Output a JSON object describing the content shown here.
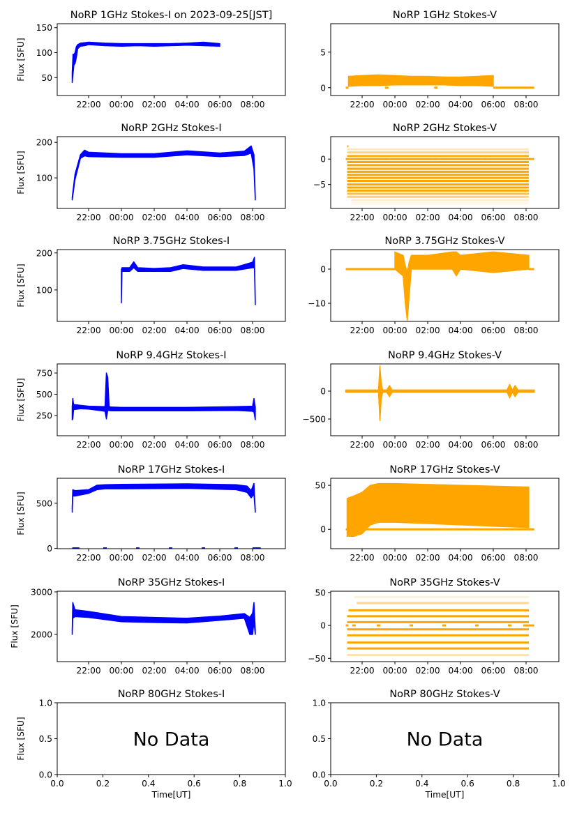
{
  "chart_data": [
    {
      "type": "scatter",
      "title": "NoRP 1GHz Stokes-I on 2023-09-25[JST]",
      "ylabel": "Flux [SFU]",
      "xlabel": "",
      "color": "#0000ff",
      "xlim": [
        "20:05",
        "10:00"
      ],
      "xticks": [
        "22:00",
        "00:00",
        "02:00",
        "04:00",
        "06:00",
        "08:00"
      ],
      "ylim": [
        14,
        158
      ],
      "yticks": [
        "50",
        "100",
        "150"
      ],
      "band": {
        "x": [
          "21:00",
          "21:03",
          "21:06",
          "21:10",
          "21:15",
          "21:20",
          "21:30",
          "21:45",
          "22:00",
          "23:00",
          "00:00",
          "01:00",
          "02:00",
          "03:00",
          "04:00",
          "05:00",
          "06:00"
        ],
        "hi": [
          60,
          97,
          96,
          100,
          112,
          116,
          119,
          120,
          121,
          119,
          118,
          118,
          118,
          118,
          119,
          121,
          118
        ],
        "lo": [
          40,
          58,
          75,
          78,
          90,
          108,
          113,
          114,
          116,
          114,
          113,
          114,
          113,
          114,
          115,
          114,
          113
        ]
      },
      "levels": [],
      "zero_markers": []
    },
    {
      "type": "scatter",
      "title": "NoRP 1GHz Stokes-V",
      "ylabel": "",
      "xlabel": "",
      "color": "#ffa500",
      "xlim": [
        "20:05",
        "10:00"
      ],
      "xticks": [
        "22:00",
        "00:00",
        "02:00",
        "04:00",
        "06:00",
        "08:00"
      ],
      "ylim": [
        -1.1,
        9.0
      ],
      "yticks": [
        "0",
        "5"
      ],
      "band": {
        "x": [
          "21:10",
          "22:00",
          "23:00",
          "00:00",
          "01:00",
          "02:00",
          "03:00",
          "04:00",
          "05:00",
          "06:00"
        ],
        "hi": [
          1.6,
          1.7,
          1.8,
          1.7,
          1.6,
          1.6,
          1.5,
          1.5,
          1.6,
          1.7
        ],
        "lo": [
          0.2,
          0.3,
          0.3,
          0.4,
          0.4,
          0.4,
          0.4,
          0.3,
          0.3,
          0.2
        ]
      },
      "levels": [
        {
          "y": 0,
          "x0": "21:00",
          "x1": "21:10",
          "alpha": 1
        },
        {
          "y": 0,
          "x0": "06:00",
          "x1": "08:30",
          "alpha": 1
        }
      ],
      "zero_markers": [
        "23:30",
        "02:30"
      ]
    },
    {
      "type": "scatter",
      "title": "NoRP 2GHz Stokes-I",
      "ylabel": "Flux [SFU]",
      "xlabel": "",
      "color": "#0000ff",
      "xlim": [
        "20:05",
        "10:00"
      ],
      "xticks": [
        "22:00",
        "00:00",
        "02:00",
        "04:00",
        "06:00",
        "08:00"
      ],
      "ylim": [
        14,
        216
      ],
      "yticks": [
        "100",
        "200"
      ],
      "band": {
        "x": [
          "21:00",
          "21:10",
          "21:30",
          "21:45",
          "22:00",
          "00:00",
          "02:00",
          "04:00",
          "06:00",
          "07:30",
          "07:55",
          "08:05",
          "08:10"
        ],
        "hi": [
          45,
          110,
          165,
          178,
          172,
          168,
          168,
          176,
          170,
          175,
          190,
          165,
          45
        ],
        "lo": [
          38,
          95,
          155,
          162,
          160,
          158,
          158,
          165,
          160,
          163,
          170,
          125,
          38
        ]
      },
      "levels": [],
      "zero_markers": []
    },
    {
      "type": "scatter",
      "title": "NoRP 2GHz Stokes-V",
      "ylabel": "",
      "xlabel": "",
      "color": "#ffa500",
      "xlim": [
        "20:05",
        "10:00"
      ],
      "xticks": [
        "22:00",
        "00:00",
        "02:00",
        "04:00",
        "06:00",
        "08:00"
      ],
      "ylim": [
        -9.7,
        4.4
      ],
      "yticks": [
        "0",
        "-5"
      ],
      "band": null,
      "levels": [
        {
          "y": 0,
          "x0": "21:00",
          "x1": "08:30",
          "alpha": 1
        },
        {
          "y": 2.5,
          "x0": "21:05",
          "x1": "21:10",
          "alpha": 0.9
        },
        {
          "y": 1.9,
          "x0": "21:05",
          "x1": "08:10",
          "alpha": 0.25
        },
        {
          "y": 1.3,
          "x0": "21:05",
          "x1": "08:10",
          "alpha": 0.5
        },
        {
          "y": 0.6,
          "x0": "21:05",
          "x1": "08:10",
          "alpha": 0.9
        },
        {
          "y": -0.6,
          "x0": "21:05",
          "x1": "08:10",
          "alpha": 1
        },
        {
          "y": -1.2,
          "x0": "21:05",
          "x1": "08:10",
          "alpha": 1
        },
        {
          "y": -1.9,
          "x0": "21:05",
          "x1": "08:10",
          "alpha": 1
        },
        {
          "y": -2.5,
          "x0": "21:05",
          "x1": "08:10",
          "alpha": 1
        },
        {
          "y": -3.1,
          "x0": "21:05",
          "x1": "08:10",
          "alpha": 1
        },
        {
          "y": -3.7,
          "x0": "21:05",
          "x1": "08:10",
          "alpha": 1
        },
        {
          "y": -4.3,
          "x0": "21:05",
          "x1": "08:10",
          "alpha": 1
        },
        {
          "y": -5.0,
          "x0": "21:05",
          "x1": "08:10",
          "alpha": 1
        },
        {
          "y": -5.6,
          "x0": "21:05",
          "x1": "08:10",
          "alpha": 1
        },
        {
          "y": -6.2,
          "x0": "21:05",
          "x1": "08:10",
          "alpha": 1
        },
        {
          "y": -6.8,
          "x0": "21:05",
          "x1": "08:10",
          "alpha": 0.7
        },
        {
          "y": -7.4,
          "x0": "21:05",
          "x1": "08:10",
          "alpha": 0.5
        },
        {
          "y": -8.1,
          "x0": "21:20",
          "x1": "08:10",
          "alpha": 0.2
        },
        {
          "y": -8.7,
          "x0": "21:20",
          "x1": "08:10",
          "alpha": 0.1
        }
      ],
      "zero_markers": [
        "23:30",
        "02:30",
        "05:30"
      ]
    },
    {
      "type": "scatter",
      "title": "NoRP 3.75GHz Stokes-I",
      "ylabel": "Flux [SFU]",
      "xlabel": "",
      "color": "#0000ff",
      "xlim": [
        "20:05",
        "10:00"
      ],
      "xticks": [
        "22:00",
        "00:00",
        "02:00",
        "04:00",
        "06:00",
        "08:00"
      ],
      "ylim": [
        15,
        209
      ],
      "yticks": [
        "100",
        "200"
      ],
      "band": {
        "x": [
          "00:00",
          "00:02",
          "00:30",
          "00:45",
          "01:00",
          "02:00",
          "03:00",
          "03:45",
          "05:00",
          "07:00",
          "08:00",
          "08:07",
          "08:10"
        ],
        "hi": [
          155,
          160,
          160,
          176,
          160,
          158,
          160,
          168,
          162,
          162,
          175,
          188,
          70
        ],
        "lo": [
          65,
          150,
          150,
          160,
          150,
          150,
          150,
          158,
          153,
          153,
          160,
          160,
          60
        ]
      },
      "levels": [],
      "zero_markers": []
    },
    {
      "type": "scatter",
      "title": "NoRP 3.75GHz Stokes-V",
      "ylabel": "",
      "xlabel": "",
      "color": "#ffa500",
      "xlim": [
        "20:05",
        "10:00"
      ],
      "xticks": [
        "22:00",
        "00:00",
        "02:00",
        "04:00",
        "06:00",
        "08:00"
      ],
      "ylim": [
        -15.3,
        5.7
      ],
      "yticks": [
        "0",
        "-10"
      ],
      "band": {
        "x": [
          "00:00",
          "00:30",
          "00:38",
          "00:45",
          "00:52",
          "01:00",
          "02:00",
          "03:30",
          "03:45",
          "04:00",
          "06:00",
          "08:10"
        ],
        "hi": [
          5,
          4,
          1,
          -1,
          2,
          4,
          4,
          5,
          5,
          4,
          5,
          4
        ],
        "lo": [
          0,
          -2,
          -10,
          -15,
          -8,
          0,
          0,
          0,
          -2,
          0,
          -1,
          0
        ]
      },
      "levels": [
        {
          "y": 0,
          "x0": "21:00",
          "x1": "00:00",
          "alpha": 1
        },
        {
          "y": 0,
          "x0": "08:10",
          "x1": "08:30",
          "alpha": 1
        }
      ],
      "zero_markers": []
    },
    {
      "type": "scatter",
      "title": "NoRP 9.4GHz Stokes-I",
      "ylabel": "Flux [SFU]",
      "xlabel": "",
      "color": "#0000ff",
      "xlim": [
        "20:05",
        "10:00"
      ],
      "xticks": [
        "22:00",
        "00:00",
        "02:00",
        "04:00",
        "06:00",
        "08:00"
      ],
      "ylim": [
        12,
        857
      ],
      "yticks": [
        "250",
        "500",
        "750"
      ],
      "band": {
        "x": [
          "21:00",
          "21:02",
          "21:05",
          "21:30",
          "22:00",
          "23:00",
          "23:05",
          "23:10",
          "23:15",
          "23:20",
          "00:00",
          "04:00",
          "07:00",
          "08:00",
          "08:05",
          "08:10"
        ],
        "hi": [
          350,
          450,
          380,
          370,
          360,
          355,
          750,
          700,
          360,
          350,
          345,
          345,
          355,
          360,
          450,
          350
        ],
        "lo": [
          200,
          210,
          320,
          330,
          325,
          300,
          210,
          310,
          310,
          305,
          305,
          305,
          310,
          300,
          290,
          200
        ]
      },
      "levels": [],
      "zero_markers": []
    },
    {
      "type": "scatter",
      "title": "NoRP 9.4GHz Stokes-V",
      "ylabel": "",
      "xlabel": "",
      "color": "#ffa500",
      "xlim": [
        "20:05",
        "10:00"
      ],
      "xticks": [
        "22:00",
        "00:00",
        "02:00",
        "04:00",
        "06:00",
        "08:00"
      ],
      "ylim": [
        -800,
        487
      ],
      "yticks": [
        "0",
        "-500"
      ],
      "band": {
        "x": [
          "21:00",
          "23:00",
          "23:05",
          "23:10",
          "23:15",
          "23:30",
          "23:40",
          "23:50",
          "06:50",
          "07:00",
          "07:10",
          "07:20",
          "07:30",
          "08:30"
        ],
        "hi": [
          20,
          20,
          450,
          150,
          20,
          20,
          100,
          20,
          20,
          120,
          20,
          100,
          20,
          20
        ],
        "lo": [
          -20,
          -20,
          -530,
          -150,
          -20,
          -20,
          -100,
          -20,
          -20,
          -120,
          -20,
          -100,
          -20,
          -20
        ]
      },
      "levels": [
        {
          "y": 0,
          "x0": "21:00",
          "x1": "08:30",
          "alpha": 1
        }
      ],
      "zero_markers": []
    },
    {
      "type": "scatter",
      "title": "NoRP 17GHz Stokes-I",
      "ylabel": "Flux [SFU]",
      "xlabel": "",
      "color": "#0000ff",
      "xlim": [
        "20:05",
        "10:00"
      ],
      "xticks": [
        "22:00",
        "00:00",
        "02:00",
        "04:00",
        "06:00",
        "08:00"
      ],
      "ylim": [
        -3,
        777
      ],
      "yticks": [
        "0",
        "500"
      ],
      "band": {
        "x": [
          "21:00",
          "21:02",
          "21:10",
          "22:00",
          "22:30",
          "23:00",
          "00:00",
          "04:00",
          "07:00",
          "07:40",
          "07:55",
          "08:05",
          "08:10"
        ],
        "hi": [
          450,
          650,
          640,
          650,
          700,
          705,
          710,
          715,
          705,
          690,
          640,
          720,
          420
        ],
        "lo": [
          400,
          580,
          580,
          610,
          650,
          660,
          660,
          665,
          650,
          620,
          560,
          600,
          400
        ]
      },
      "levels": [
        {
          "y": 0,
          "x0": "21:00",
          "x1": "21:15",
          "alpha": 1
        },
        {
          "y": 0,
          "x0": "08:00",
          "x1": "08:30",
          "alpha": 1
        }
      ],
      "zero_markers": [
        "21:20",
        "23:00",
        "01:00",
        "03:00",
        "05:00",
        "07:00"
      ]
    },
    {
      "type": "scatter",
      "title": "NoRP 17GHz Stokes-V",
      "ylabel": "",
      "xlabel": "",
      "color": "#ffa500",
      "xlim": [
        "20:05",
        "10:00"
      ],
      "xticks": [
        "22:00",
        "00:00",
        "02:00",
        "04:00",
        "06:00",
        "08:00"
      ],
      "ylim": [
        -22,
        58
      ],
      "yticks": [
        "0",
        "50"
      ],
      "band": {
        "x": [
          "21:05",
          "21:30",
          "22:00",
          "22:30",
          "23:00",
          "00:00",
          "04:00",
          "08:10"
        ],
        "hi": [
          35,
          38,
          42,
          50,
          52,
          52,
          50,
          48
        ],
        "lo": [
          -8,
          -8,
          -5,
          5,
          8,
          8,
          5,
          2
        ]
      },
      "levels": [
        {
          "y": 0,
          "x0": "21:00",
          "x1": "08:30",
          "alpha": 1
        }
      ],
      "zero_markers": []
    },
    {
      "type": "scatter",
      "title": "NoRP 35GHz Stokes-I",
      "ylabel": "Flux [SFU]",
      "xlabel": "",
      "color": "#0000ff",
      "xlim": [
        "20:05",
        "10:00"
      ],
      "xticks": [
        "22:00",
        "00:00",
        "02:00",
        "04:00",
        "06:00",
        "08:00"
      ],
      "ylim": [
        1360,
        3016
      ],
      "yticks": [
        "2000",
        "3000"
      ],
      "band": {
        "x": [
          "21:00",
          "21:02",
          "21:10",
          "22:00",
          "00:00",
          "02:00",
          "04:00",
          "06:00",
          "07:30",
          "07:50",
          "08:00",
          "08:05",
          "08:10"
        ],
        "hi": [
          2100,
          2750,
          2580,
          2540,
          2420,
          2400,
          2380,
          2430,
          2490,
          2400,
          2500,
          2750,
          2100
        ],
        "lo": [
          2000,
          2380,
          2420,
          2400,
          2300,
          2280,
          2270,
          2330,
          2380,
          2000,
          2000,
          2300,
          2000
        ]
      },
      "levels": [],
      "zero_markers": []
    },
    {
      "type": "scatter",
      "title": "NoRP 35GHz Stokes-V",
      "ylabel": "",
      "xlabel": "",
      "color": "#ffa500",
      "xlim": [
        "20:05",
        "10:00"
      ],
      "xticks": [
        "22:00",
        "00:00",
        "02:00",
        "04:00",
        "06:00",
        "08:00"
      ],
      "ylim": [
        -55,
        52
      ],
      "yticks": [
        "50",
        "0",
        "-50"
      ],
      "band": null,
      "levels": [
        {
          "y": 0,
          "x0": "21:00",
          "x1": "21:10",
          "alpha": 1
        },
        {
          "y": 0,
          "x0": "07:50",
          "x1": "08:30",
          "alpha": 1
        },
        {
          "y": 43,
          "x0": "21:30",
          "x1": "08:10",
          "alpha": 0.15
        },
        {
          "y": 34,
          "x0": "21:40",
          "x1": "08:10",
          "alpha": 0.45
        },
        {
          "y": 23,
          "x0": "21:10",
          "x1": "08:10",
          "alpha": 1
        },
        {
          "y": 14,
          "x0": "21:05",
          "x1": "08:10",
          "alpha": 1
        },
        {
          "y": 5,
          "x0": "21:05",
          "x1": "08:10",
          "alpha": 1
        },
        {
          "y": -6,
          "x0": "21:05",
          "x1": "08:10",
          "alpha": 1
        },
        {
          "y": -15,
          "x0": "21:05",
          "x1": "08:10",
          "alpha": 1
        },
        {
          "y": -26,
          "x0": "21:05",
          "x1": "08:10",
          "alpha": 1
        },
        {
          "y": -35,
          "x0": "21:05",
          "x1": "08:10",
          "alpha": 1
        },
        {
          "y": -45,
          "x0": "21:05",
          "x1": "08:10",
          "alpha": 0.3
        }
      ],
      "zero_markers": [
        "21:30",
        "23:00",
        "01:00",
        "03:00",
        "05:00",
        "07:00"
      ]
    },
    {
      "type": "scatter",
      "title": "NoRP 80GHz Stokes-I",
      "ylabel": "Flux [SFU]",
      "xlabel": "Time[UT]",
      "color": "#0000ff",
      "xlim": [
        0,
        1
      ],
      "xticks": [
        "0.0",
        "0.2",
        "0.4",
        "0.6",
        "0.8",
        "1.0"
      ],
      "ylim": [
        0,
        1
      ],
      "yticks": [
        "0.0",
        "0.5",
        "1.0"
      ],
      "annotation": "No Data",
      "band": null,
      "levels": [],
      "zero_markers": []
    },
    {
      "type": "scatter",
      "title": "NoRP 80GHz Stokes-V",
      "ylabel": "",
      "xlabel": "Time[UT]",
      "color": "#ffa500",
      "xlim": [
        0,
        1
      ],
      "xticks": [
        "0.0",
        "0.2",
        "0.4",
        "0.6",
        "0.8",
        "1.0"
      ],
      "ylim": [
        0,
        1
      ],
      "yticks": [
        "0.0",
        "0.5",
        "1.0"
      ],
      "annotation": "No Data",
      "band": null,
      "levels": [],
      "zero_markers": []
    }
  ]
}
